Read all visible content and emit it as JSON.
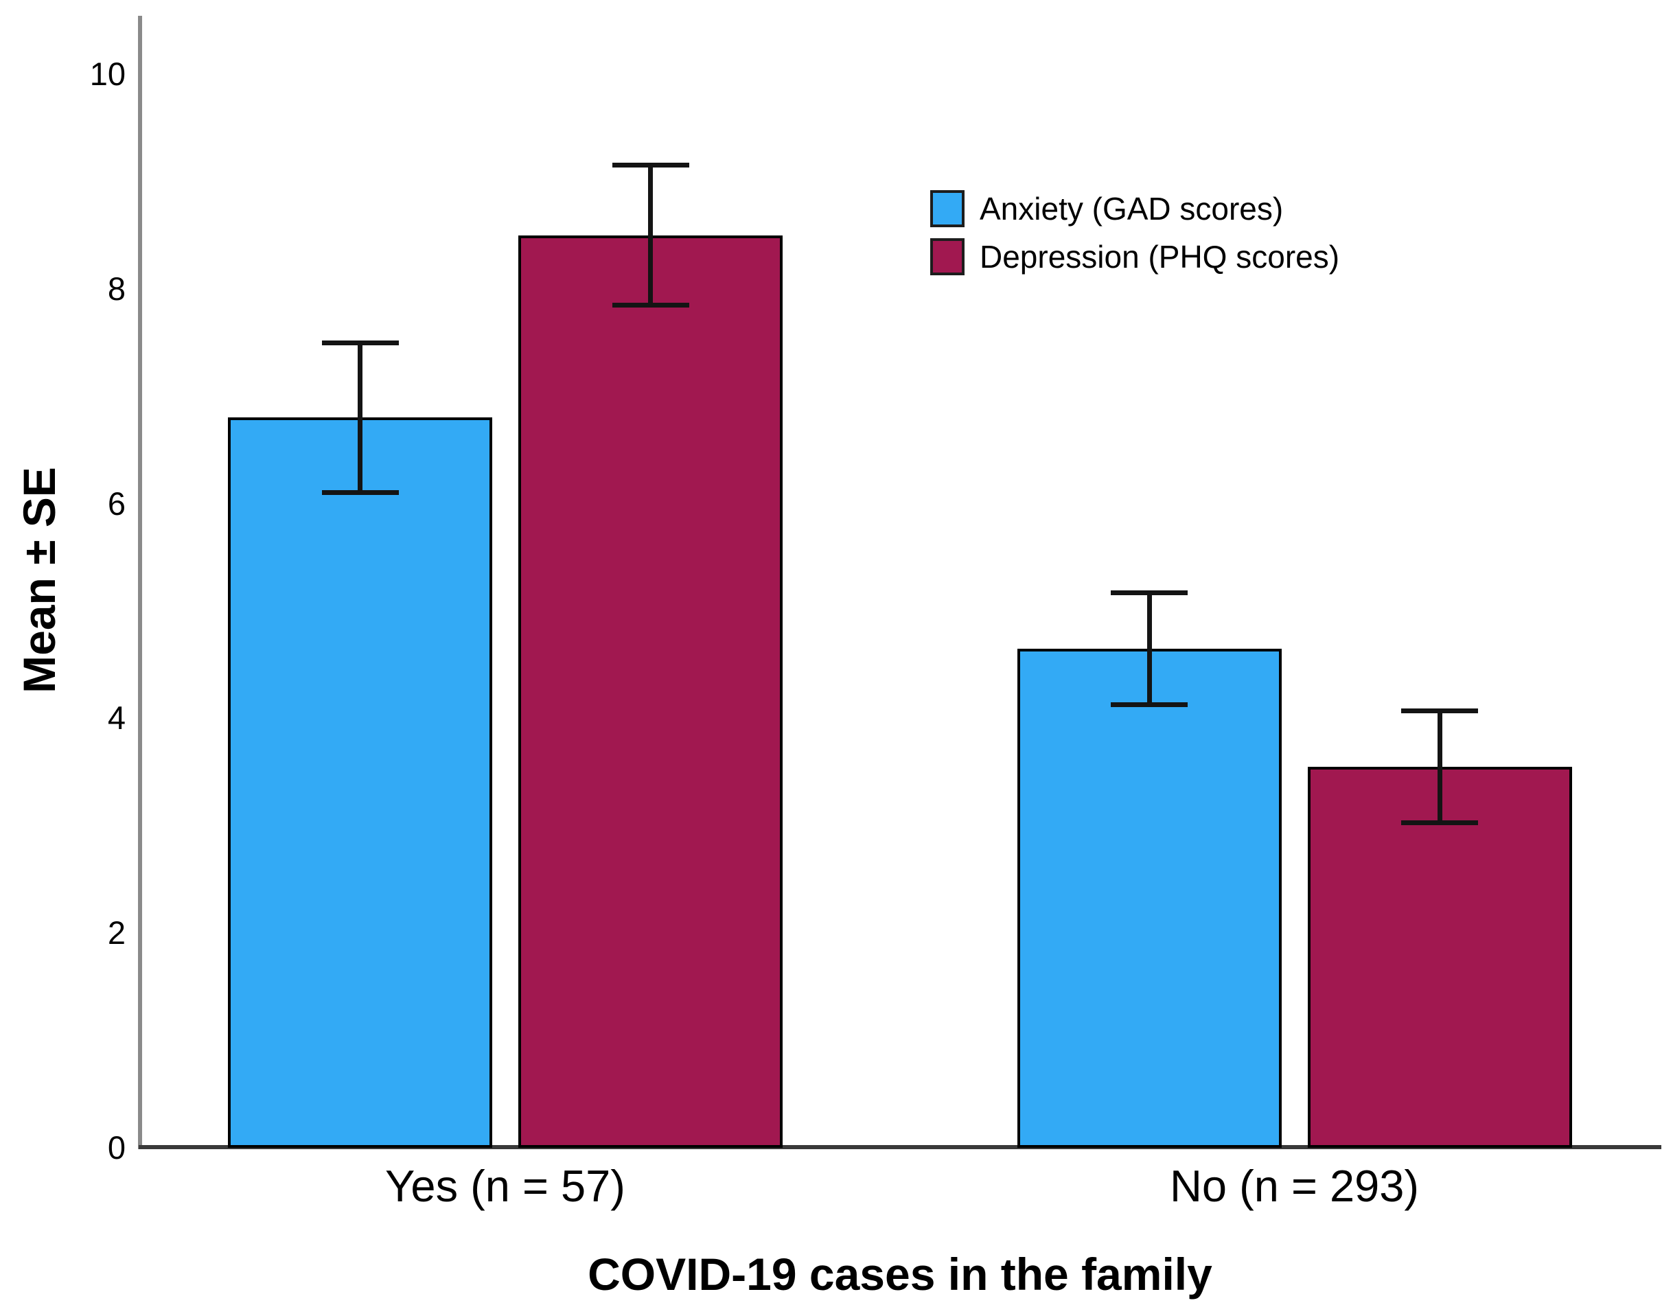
{
  "colors": {
    "background": "#FFFFFF",
    "bar_anxiety": "#33AAF5",
    "bar_depression": "#A11850",
    "bar_border": "#000000",
    "error_bar": "#141414",
    "y_axis_line": "#8A8A8A",
    "x_axis_line": "#3A3A3A",
    "text": "#000000"
  },
  "chart_data": {
    "type": "bar",
    "title": "",
    "xlabel": "COVID-19 cases in the family",
    "ylabel": "Mean ± SE",
    "categories": [
      "Yes (n = 57)",
      "No (n = 293)"
    ],
    "series": [
      {
        "name": "Anxiety (GAD scores)",
        "color": "#33AAF5",
        "means": [
          6.8,
          4.65
        ],
        "se": [
          0.7,
          0.52
        ]
      },
      {
        "name": "Depression (PHQ scores)",
        "color": "#A11850",
        "means": [
          8.5,
          3.55
        ],
        "se": [
          0.65,
          0.52
        ]
      }
    ],
    "ylim": [
      0,
      10.6
    ],
    "yticks": [
      0,
      2,
      4,
      6,
      8,
      10
    ],
    "grid": false,
    "error_bars": true,
    "legend_position": "upper-right-inside",
    "group_sizes": [
      57,
      293
    ]
  }
}
